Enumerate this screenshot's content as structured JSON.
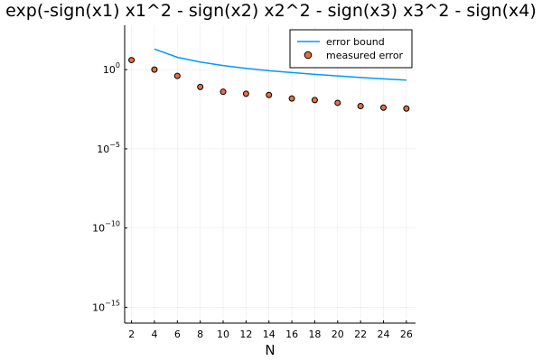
{
  "chart_data": {
    "type": "scatter",
    "title": "exp(-sign(x1) x1^2 - sign(x2) x2^2 - sign(x3) x3^2 - sign(x4)",
    "xlabel": "N",
    "ylabel": "",
    "yscale": "log",
    "xlim": [
      1.4,
      26.8
    ],
    "ylim_log10": [
      -16,
      2.8
    ],
    "x_ticks": [
      2,
      4,
      6,
      8,
      10,
      12,
      14,
      16,
      18,
      20,
      22,
      24,
      26
    ],
    "y_ticks": [
      {
        "exp": 0,
        "base": "10",
        "sup": "0"
      },
      {
        "exp": -5,
        "base": "10",
        "sup": "−5"
      },
      {
        "exp": -10,
        "base": "10",
        "sup": "−10"
      },
      {
        "exp": -15,
        "base": "10",
        "sup": "−15"
      }
    ],
    "grid": true,
    "legend_position": "top-right",
    "series": [
      {
        "name": "error bound",
        "kind": "line",
        "color": "#009af9",
        "x": [
          4,
          6,
          8,
          10,
          12,
          14,
          16,
          18,
          20,
          22,
          24,
          26
        ],
        "y": [
          20,
          6,
          3,
          1.8,
          1.2,
          0.85,
          0.65,
          0.5,
          0.4,
          0.32,
          0.26,
          0.22
        ]
      },
      {
        "name": "measured error",
        "kind": "scatter",
        "color": "#e26f46",
        "x": [
          2,
          4,
          6,
          8,
          10,
          12,
          14,
          16,
          18,
          20,
          22,
          24,
          26
        ],
        "y": [
          4,
          1,
          0.4,
          0.08,
          0.04,
          0.03,
          0.025,
          0.015,
          0.012,
          0.008,
          0.005,
          0.004,
          0.0035
        ]
      }
    ]
  }
}
